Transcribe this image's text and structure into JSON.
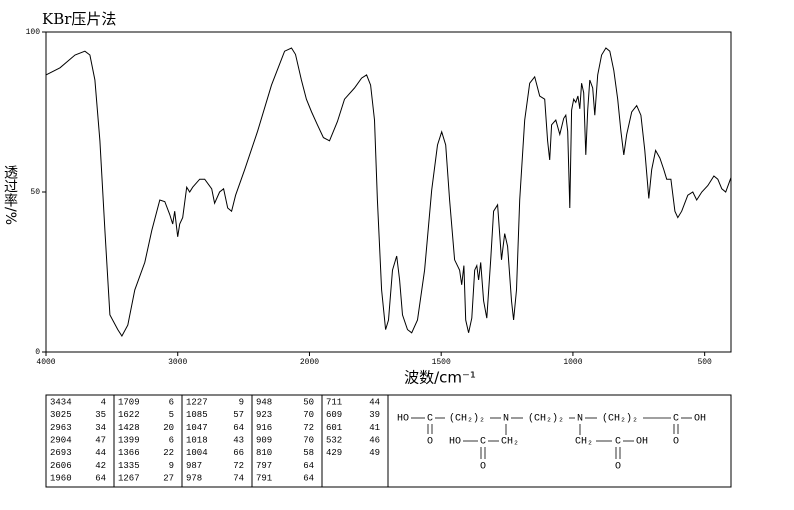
{
  "chart_data": {
    "type": "line",
    "title": "KBr压片法",
    "x_label": "波数/cm⁻¹",
    "y_label": "透过率/%",
    "xlim": [
      4000,
      400
    ],
    "xticks": [
      4000,
      3000,
      2000,
      1500,
      1000,
      500
    ],
    "ylim": [
      0,
      100
    ],
    "yticks": [
      0,
      50,
      100
    ],
    "color": "#000000",
    "x": [
      4000,
      3894,
      3780,
      3705,
      3667,
      3629,
      3591,
      3553,
      3515,
      3455,
      3424,
      3379,
      3326,
      3250,
      3197,
      3136,
      3098,
      3061,
      3038,
      3023,
      3000,
      2985,
      2962,
      2932,
      2909,
      2886,
      2833,
      2795,
      2742,
      2720,
      2682,
      2652,
      2621,
      2591,
      2561,
      2492,
      2394,
      2288,
      2189,
      2136,
      2106,
      2061,
      2023,
      1992,
      1970,
      1947,
      1924,
      1894,
      1867,
      1829,
      1802,
      1783,
      1768,
      1753,
      1742,
      1726,
      1711,
      1700,
      1685,
      1669,
      1658,
      1647,
      1628,
      1612,
      1590,
      1563,
      1536,
      1514,
      1498,
      1483,
      1468,
      1449,
      1430,
      1422,
      1414,
      1407,
      1396,
      1384,
      1373,
      1365,
      1358,
      1350,
      1339,
      1327,
      1312,
      1301,
      1286,
      1271,
      1259,
      1248,
      1233,
      1225,
      1214,
      1202,
      1183,
      1164,
      1145,
      1126,
      1107,
      1096,
      1088,
      1081,
      1065,
      1050,
      1035,
      1027,
      1020,
      1012,
      1005,
      997,
      989,
      981,
      974,
      967,
      959,
      951,
      944,
      936,
      925,
      917,
      906,
      891,
      875,
      860,
      845,
      830,
      818,
      807,
      796,
      777,
      758,
      742,
      727,
      712,
      701,
      686,
      670,
      655,
      644,
      628,
      613,
      602,
      587,
      564,
      545,
      530,
      511,
      488,
      465,
      450,
      435,
      420,
      400
    ],
    "values": [
      86.6,
      88.8,
      92.8,
      94,
      92.8,
      85,
      66,
      38,
      11.6,
      7,
      5,
      8.4,
      19.4,
      28,
      38,
      47.5,
      47,
      43,
      40,
      44,
      36,
      40,
      42,
      51.5,
      50,
      51.5,
      54,
      54,
      51,
      46.5,
      50,
      51,
      45,
      44,
      49,
      57,
      69,
      83.4,
      94,
      95,
      93,
      85,
      79,
      75,
      71,
      67,
      66,
      72,
      79,
      82.5,
      85.6,
      86.6,
      83.4,
      72.5,
      47.5,
      19.4,
      7,
      10,
      25.6,
      30,
      22.5,
      11.6,
      7,
      6,
      10,
      25.6,
      50.6,
      64.7,
      68.8,
      64.7,
      47.5,
      28.8,
      25.6,
      21,
      27,
      10,
      6,
      10.6,
      25.6,
      27,
      22.5,
      28,
      16,
      10.6,
      28.8,
      44,
      46,
      28.8,
      37,
      33,
      16,
      10,
      19.4,
      47.5,
      72.5,
      84,
      86,
      80,
      79,
      66,
      60,
      71,
      72.5,
      68,
      73,
      74,
      69,
      45,
      75.6,
      79,
      78,
      80,
      76,
      84,
      81,
      61.6,
      75.6,
      85,
      82.5,
      74,
      86.6,
      92.8,
      95,
      94,
      88,
      79,
      69,
      61.6,
      68,
      75,
      77,
      74,
      63,
      48,
      57,
      63,
      60.6,
      57,
      54,
      54,
      44,
      42,
      44,
      49,
      50,
      47.5,
      50,
      52,
      55,
      54,
      51,
      50,
      54.5
    ]
  },
  "peak_table": [
    [
      [
        3434,
        4
      ],
      [
        3025,
        35
      ],
      [
        2963,
        34
      ],
      [
        2904,
        47
      ],
      [
        2693,
        44
      ],
      [
        2606,
        42
      ],
      [
        1960,
        64
      ]
    ],
    [
      [
        1709,
        6
      ],
      [
        1622,
        5
      ],
      [
        1428,
        20
      ],
      [
        1399,
        6
      ],
      [
        1366,
        22
      ],
      [
        1335,
        9
      ],
      [
        1267,
        27
      ]
    ],
    [
      [
        1227,
        9
      ],
      [
        1085,
        57
      ],
      [
        1047,
        64
      ],
      [
        1018,
        43
      ],
      [
        1004,
        66
      ],
      [
        987,
        72
      ],
      [
        978,
        74
      ]
    ],
    [
      [
        948,
        50
      ],
      [
        923,
        70
      ],
      [
        916,
        72
      ],
      [
        909,
        70
      ],
      [
        810,
        58
      ],
      [
        797,
        64
      ],
      [
        791,
        64
      ]
    ],
    [
      [
        711,
        44
      ],
      [
        609,
        39
      ],
      [
        601,
        41
      ],
      [
        532,
        46
      ],
      [
        429,
        49
      ]
    ]
  ],
  "structure": {
    "main": [
      "HO",
      "C",
      "(CH₂)₂",
      "N",
      "(CH₂)₂",
      "N",
      "(CH₂)₂",
      "C",
      "OH"
    ],
    "carbonyl_left": "O",
    "carbonyl_right": "O",
    "branch_left": [
      "HO",
      "C",
      "CH₂",
      "O"
    ],
    "branch_right": [
      "CH₂",
      "C",
      "OH",
      "O"
    ]
  }
}
